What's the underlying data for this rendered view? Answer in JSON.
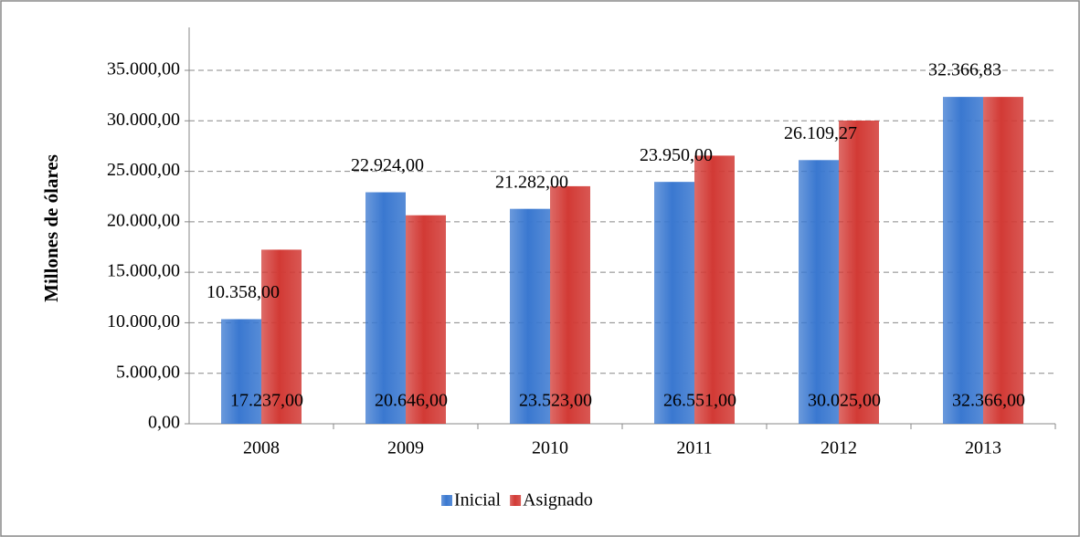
{
  "chart_data": {
    "type": "bar",
    "y_label": "Millones de ólares",
    "categories": [
      "2008",
      "2009",
      "2010",
      "2011",
      "2012",
      "2013"
    ],
    "series": [
      {
        "name": "Inicial",
        "color": "#3a78d0",
        "values": [
          10358,
          22924,
          21282,
          23950,
          26109.27,
          32366.83
        ],
        "value_labels": [
          "10.358,00",
          "22.924,00",
          "21.282,00",
          "23.950,00",
          "26.109,27",
          "32.366,83"
        ]
      },
      {
        "name": "Asignado",
        "color": "#d23a35",
        "values": [
          17237,
          20646,
          23523,
          26551,
          30025,
          32366
        ],
        "value_labels": [
          "17.237,00",
          "20.646,00",
          "23.523,00",
          "26.551,00",
          "30.025,00",
          "32.366,00"
        ]
      }
    ],
    "ylim": [
      0,
      39250
    ],
    "yticks": [
      {
        "value": 0,
        "label": "0,00"
      },
      {
        "value": 5000,
        "label": "5.000,00"
      },
      {
        "value": 10000,
        "label": "10.000,00"
      },
      {
        "value": 15000,
        "label": "15.000,00"
      },
      {
        "value": 20000,
        "label": "20.000,00"
      },
      {
        "value": 25000,
        "label": "25.000,00"
      },
      {
        "value": 30000,
        "label": "30.000,00"
      },
      {
        "value": 35000,
        "label": "35.000,00"
      }
    ],
    "grid": true,
    "legend": "bottom"
  }
}
